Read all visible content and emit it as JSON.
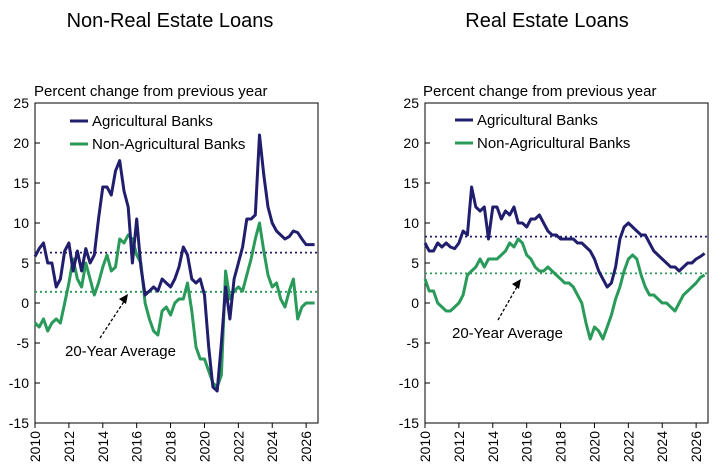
{
  "colors": {
    "agricultural": "#221e6e",
    "non_agricultural": "#2a9a5a"
  },
  "chart_data": [
    {
      "type": "line",
      "title": "Non-Real Estate Loans",
      "ylabel": "Percent change from previous year",
      "xlim": [
        2010,
        2026.7
      ],
      "ylim": [
        -15,
        25
      ],
      "yticks": [
        25,
        20,
        15,
        10,
        5,
        0,
        -5,
        -10,
        -15
      ],
      "xticks": [
        2010,
        2012,
        2014,
        2016,
        2018,
        2020,
        2022,
        2024,
        2026
      ],
      "legend": [
        "Agricultural Banks",
        "Non-Agricultural Banks"
      ],
      "annotation": "20-Year Average",
      "averages": {
        "Agricultural Banks": 6.3,
        "Non-Agricultural Banks": 1.4
      },
      "series": [
        {
          "name": "Agricultural Banks",
          "x": [
            2010.0,
            2010.25,
            2010.5,
            2010.75,
            2011.0,
            2011.25,
            2011.5,
            2011.75,
            2012.0,
            2012.25,
            2012.5,
            2012.75,
            2013.0,
            2013.25,
            2013.5,
            2013.75,
            2014.0,
            2014.25,
            2014.5,
            2014.75,
            2015.0,
            2015.25,
            2015.5,
            2015.75,
            2016.0,
            2016.25,
            2016.5,
            2016.75,
            2017.0,
            2017.25,
            2017.5,
            2017.75,
            2018.0,
            2018.25,
            2018.5,
            2018.75,
            2019.0,
            2019.25,
            2019.5,
            2019.75,
            2020.0,
            2020.25,
            2020.5,
            2020.75,
            2021.0,
            2021.25,
            2021.5,
            2021.75,
            2022.0,
            2022.25,
            2022.5,
            2022.75,
            2023.0,
            2023.25,
            2023.5,
            2023.75,
            2024.0,
            2024.25,
            2024.5,
            2024.75,
            2025.0,
            2025.25,
            2025.5,
            2025.75,
            2026.0,
            2026.25,
            2026.5
          ],
          "values": [
            5.8,
            6.8,
            7.5,
            5.0,
            5.0,
            2.0,
            3.0,
            6.5,
            7.5,
            4.0,
            6.5,
            4.0,
            6.8,
            5.0,
            6.0,
            10.5,
            14.5,
            14.5,
            13.5,
            16.5,
            17.8,
            14.0,
            12.0,
            5.0,
            10.5,
            4.5,
            1.0,
            1.5,
            2.0,
            1.5,
            3.0,
            2.5,
            2.0,
            3.0,
            4.5,
            7.0,
            6.0,
            3.0,
            2.5,
            3.0,
            1.0,
            -5.5,
            -10.5,
            -11.0,
            -5.0,
            2.0,
            -2.0,
            3.0,
            5.0,
            7.0,
            10.5,
            10.5,
            11.0,
            21.0,
            16.0,
            12.0,
            10.0,
            9.0,
            8.5,
            8.0,
            8.3,
            9.0,
            8.8,
            8.0,
            7.3,
            7.3,
            7.3
          ]
        },
        {
          "name": "Non-Agricultural Banks",
          "x": [
            2010.0,
            2010.25,
            2010.5,
            2010.75,
            2011.0,
            2011.25,
            2011.5,
            2011.75,
            2012.0,
            2012.25,
            2012.5,
            2012.75,
            2013.0,
            2013.25,
            2013.5,
            2013.75,
            2014.0,
            2014.25,
            2014.5,
            2014.75,
            2015.0,
            2015.25,
            2015.5,
            2015.75,
            2016.0,
            2016.25,
            2016.5,
            2016.75,
            2017.0,
            2017.25,
            2017.5,
            2017.75,
            2018.0,
            2018.25,
            2018.5,
            2018.75,
            2019.0,
            2019.25,
            2019.5,
            2019.75,
            2020.0,
            2020.25,
            2020.5,
            2020.75,
            2021.0,
            2021.25,
            2021.5,
            2021.75,
            2022.0,
            2022.25,
            2022.5,
            2022.75,
            2023.0,
            2023.25,
            2023.5,
            2023.75,
            2024.0,
            2024.25,
            2024.5,
            2024.75,
            2025.0,
            2025.25,
            2025.5,
            2025.75,
            2026.0,
            2026.25,
            2026.5
          ],
          "values": [
            -2.5,
            -3.0,
            -2.0,
            -3.5,
            -2.5,
            -2.0,
            -2.5,
            0.0,
            2.5,
            5.5,
            3.0,
            2.0,
            5.0,
            3.0,
            1.0,
            2.5,
            4.5,
            6.0,
            4.0,
            4.5,
            8.0,
            7.5,
            8.5,
            8.0,
            6.0,
            5.0,
            0.0,
            -2.0,
            -3.5,
            -4.0,
            -1.0,
            -0.5,
            -1.5,
            0.0,
            0.5,
            0.5,
            2.5,
            -1.0,
            -5.5,
            -7.0,
            -7.0,
            -8.5,
            -10.0,
            -10.5,
            -9.0,
            4.0,
            0.5,
            1.5,
            2.0,
            1.5,
            3.5,
            5.5,
            8.0,
            10.0,
            6.5,
            3.5,
            2.0,
            2.5,
            0.5,
            -0.5,
            1.5,
            3.0,
            -2.0,
            -0.5,
            0.0,
            0.0,
            0.0
          ]
        }
      ]
    },
    {
      "type": "line",
      "title": "Real Estate Loans",
      "ylabel": "Percent change from previous year",
      "xlim": [
        2010,
        2026.7
      ],
      "ylim": [
        -15,
        25
      ],
      "yticks": [
        25,
        20,
        15,
        10,
        5,
        0,
        -5,
        -10,
        -15
      ],
      "xticks": [
        2010,
        2012,
        2014,
        2016,
        2018,
        2020,
        2022,
        2024,
        2026
      ],
      "legend": [
        "Agricultural Banks",
        "Non-Agricultural Banks"
      ],
      "annotation": "20-Year Average",
      "averages": {
        "Agricultural Banks": 8.3,
        "Non-Agricultural Banks": 3.7
      },
      "series": [
        {
          "name": "Agricultural Banks",
          "x": [
            2010.0,
            2010.25,
            2010.5,
            2010.75,
            2011.0,
            2011.25,
            2011.5,
            2011.75,
            2012.0,
            2012.25,
            2012.5,
            2012.75,
            2013.0,
            2013.25,
            2013.5,
            2013.75,
            2014.0,
            2014.25,
            2014.5,
            2014.75,
            2015.0,
            2015.25,
            2015.5,
            2015.75,
            2016.0,
            2016.25,
            2016.5,
            2016.75,
            2017.0,
            2017.25,
            2017.5,
            2017.75,
            2018.0,
            2018.25,
            2018.5,
            2018.75,
            2019.0,
            2019.25,
            2019.5,
            2019.75,
            2020.0,
            2020.25,
            2020.5,
            2020.75,
            2021.0,
            2021.25,
            2021.5,
            2021.75,
            2022.0,
            2022.25,
            2022.5,
            2022.75,
            2023.0,
            2023.25,
            2023.5,
            2023.75,
            2024.0,
            2024.25,
            2024.5,
            2024.75,
            2025.0,
            2025.25,
            2025.5,
            2025.75,
            2026.0,
            2026.25,
            2026.5
          ],
          "values": [
            7.5,
            6.5,
            6.5,
            7.5,
            7.0,
            7.5,
            7.0,
            6.8,
            7.5,
            9.0,
            8.5,
            14.5,
            12.0,
            11.5,
            12.0,
            8.0,
            12.0,
            12.0,
            10.5,
            11.5,
            11.0,
            12.0,
            10.0,
            10.0,
            9.5,
            10.5,
            10.5,
            11.0,
            10.0,
            9.0,
            8.5,
            8.5,
            8.0,
            8.0,
            8.0,
            8.0,
            7.5,
            7.5,
            7.0,
            6.5,
            5.5,
            4.0,
            3.0,
            2.0,
            2.5,
            4.5,
            8.0,
            9.5,
            10.0,
            9.5,
            9.0,
            8.5,
            8.5,
            7.5,
            6.5,
            6.0,
            5.5,
            5.0,
            4.5,
            4.5,
            4.0,
            4.5,
            5.0,
            5.0,
            5.5,
            5.8,
            6.2
          ]
        },
        {
          "name": "Non-Agricultural Banks",
          "x": [
            2010.0,
            2010.25,
            2010.5,
            2010.75,
            2011.0,
            2011.25,
            2011.5,
            2011.75,
            2012.0,
            2012.25,
            2012.5,
            2012.75,
            2013.0,
            2013.25,
            2013.5,
            2013.75,
            2014.0,
            2014.25,
            2014.5,
            2014.75,
            2015.0,
            2015.25,
            2015.5,
            2015.75,
            2016.0,
            2016.25,
            2016.5,
            2016.75,
            2017.0,
            2017.25,
            2017.5,
            2017.75,
            2018.0,
            2018.25,
            2018.5,
            2018.75,
            2019.0,
            2019.25,
            2019.5,
            2019.75,
            2020.0,
            2020.25,
            2020.5,
            2020.75,
            2021.0,
            2021.25,
            2021.5,
            2021.75,
            2022.0,
            2022.25,
            2022.5,
            2022.75,
            2023.0,
            2023.25,
            2023.5,
            2023.75,
            2024.0,
            2024.25,
            2024.5,
            2024.75,
            2025.0,
            2025.25,
            2025.5,
            2025.75,
            2026.0,
            2026.25,
            2026.5
          ],
          "values": [
            3.0,
            1.5,
            1.5,
            0.0,
            -0.5,
            -1.0,
            -1.0,
            -0.5,
            0.0,
            1.0,
            3.5,
            4.0,
            4.5,
            5.5,
            4.5,
            5.5,
            5.5,
            5.5,
            6.0,
            6.5,
            7.5,
            7.0,
            8.0,
            7.5,
            6.0,
            5.5,
            4.5,
            4.0,
            4.0,
            4.5,
            4.0,
            3.5,
            3.0,
            2.5,
            2.5,
            2.0,
            1.0,
            0.0,
            -2.5,
            -4.5,
            -3.0,
            -3.5,
            -4.5,
            -3.0,
            -1.5,
            0.5,
            2.0,
            4.0,
            5.5,
            6.0,
            5.5,
            3.5,
            2.0,
            1.0,
            1.0,
            0.5,
            0.0,
            0.0,
            -0.5,
            -1.0,
            0.0,
            1.0,
            1.5,
            2.0,
            2.5,
            3.2,
            3.5
          ]
        }
      ]
    }
  ]
}
